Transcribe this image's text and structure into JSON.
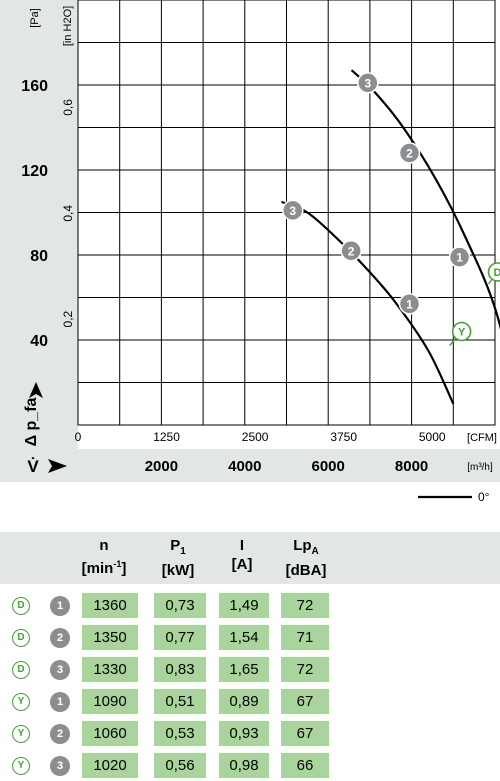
{
  "chart_data": {
    "type": "line",
    "ylabel": "Δ p_fa",
    "y_unit_pa": "[Pa]",
    "y_unit_inh2o": "[in H2O]",
    "x_unit_cfm": "[CFM]",
    "x_unit_m3h": "[m³/h]",
    "v_label": "V̇",
    "ylim_pa": [
      0,
      200
    ],
    "xlim_m3h": [
      0,
      10000
    ],
    "pa_ticks": [
      "40",
      "80",
      "120",
      "160"
    ],
    "inh2o_ticks": [
      "0,2",
      "0,4",
      "0,6"
    ],
    "cfm_ticks": [
      "0",
      "1250",
      "2500",
      "3750",
      "5000"
    ],
    "m3h_ticks": [
      "2000",
      "4000",
      "6000",
      "8000"
    ],
    "angle_legend": "0°",
    "series": [
      {
        "name": "D",
        "x": [
          6560,
          7100,
          7800,
          8600,
          9300,
          10000,
          10580
        ],
        "y": [
          167,
          157,
          140,
          115,
          88,
          55,
          10
        ]
      },
      {
        "name": "Y",
        "x": [
          4880,
          5500,
          6200,
          6900,
          7600,
          8400,
          9000
        ],
        "y": [
          105,
          100,
          88,
          74,
          58,
          35,
          10
        ]
      }
    ],
    "operating_points": [
      {
        "mode": "D",
        "point": "3",
        "x": 6950,
        "y": 161
      },
      {
        "mode": "D",
        "point": "2",
        "x": 7950,
        "y": 128
      },
      {
        "mode": "D",
        "point": "1",
        "x": 9150,
        "y": 79
      },
      {
        "mode": "Y",
        "point": "3",
        "x": 5150,
        "y": 101
      },
      {
        "mode": "Y",
        "point": "2",
        "x": 6550,
        "y": 82
      },
      {
        "mode": "Y",
        "point": "1",
        "x": 7950,
        "y": 57
      }
    ],
    "curve_labels": [
      {
        "label": "D",
        "x": 10060,
        "y": 72
      },
      {
        "label": "Y",
        "x": 9200,
        "y": 44
      }
    ]
  },
  "table": {
    "headers": [
      {
        "top": "n",
        "bottom": "[min⁻¹]"
      },
      {
        "top": "P₁",
        "bottom": "[kW]"
      },
      {
        "top": "I",
        "bottom": "[A]"
      },
      {
        "top": "Lp_A",
        "bottom": "[dBA]"
      }
    ],
    "rows": [
      {
        "mode": "D",
        "point": "1",
        "n": "1360",
        "p1": "0,73",
        "i": "1,49",
        "lpa": "72"
      },
      {
        "mode": "D",
        "point": "2",
        "n": "1350",
        "p1": "0,77",
        "i": "1,54",
        "lpa": "71"
      },
      {
        "mode": "D",
        "point": "3",
        "n": "1330",
        "p1": "0,83",
        "i": "1,65",
        "lpa": "72"
      },
      {
        "mode": "Y",
        "point": "1",
        "n": "1090",
        "p1": "0,51",
        "i": "0,89",
        "lpa": "67"
      },
      {
        "mode": "Y",
        "point": "2",
        "n": "1060",
        "p1": "0,53",
        "i": "0,93",
        "lpa": "67"
      },
      {
        "mode": "Y",
        "point": "3",
        "n": "1020",
        "p1": "0,56",
        "i": "0,98",
        "lpa": "66"
      }
    ]
  }
}
